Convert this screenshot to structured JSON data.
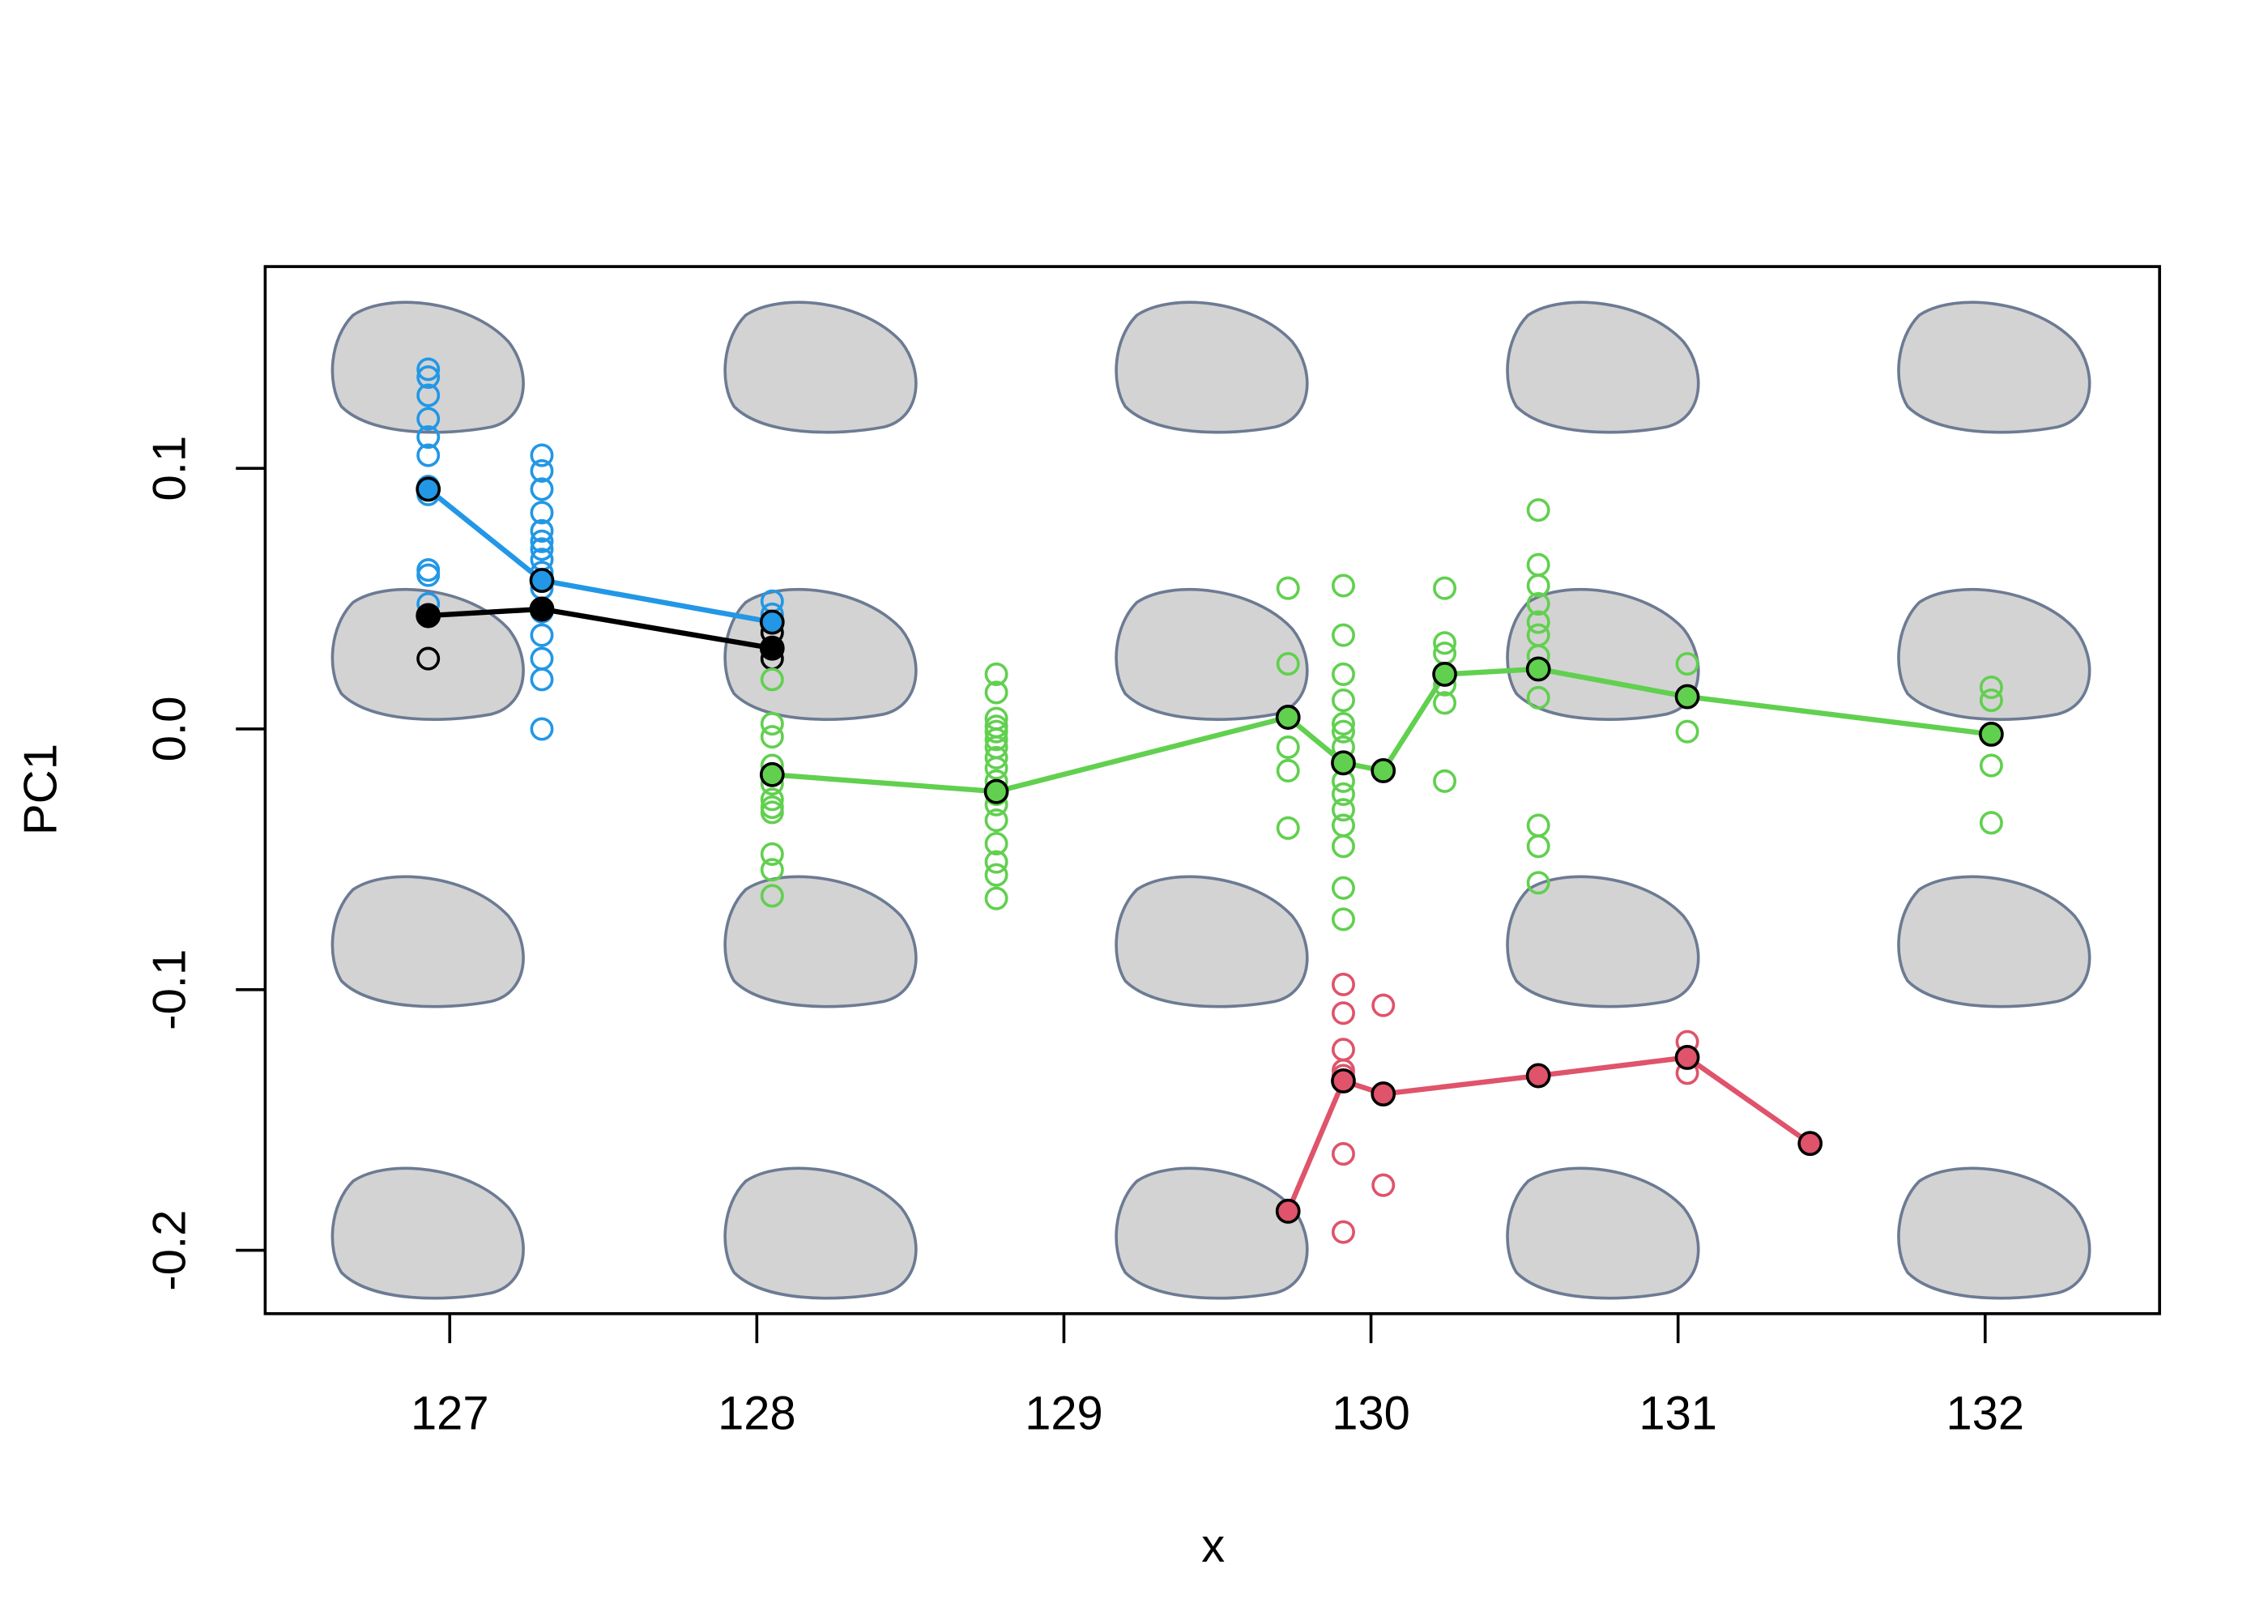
{
  "chart_data": {
    "type": "scatter",
    "x_label": "x",
    "y_label": "PC1",
    "xlim": [
      126.399,
      132.568
    ],
    "ylim": [
      -0.2243,
      0.1774
    ],
    "xticks": [
      127,
      128,
      129,
      130,
      131,
      132
    ],
    "yticks": [
      -0.2,
      -0.1,
      {
        "value": 0,
        "label": "0.0"
      },
      0.1
    ],
    "series": [
      {
        "kind": "points",
        "color": "#2297E6",
        "x": [
          126.93,
          126.93,
          126.93,
          126.93,
          126.93,
          126.93,
          126.93,
          126.93,
          126.93,
          126.93,
          126.93,
          127.3,
          127.3,
          127.3,
          127.3,
          127.3,
          127.3,
          127.3,
          127.3,
          127.3,
          127.3,
          127.3,
          127.3,
          127.3,
          127.3,
          127.3,
          128.05,
          128.05,
          128.05
        ],
        "values": [
          0.138,
          0.135,
          0.128,
          0.119,
          0.112,
          0.105,
          0.093,
          0.09,
          0.061,
          0.059,
          0.048,
          0.105,
          0.099,
          0.092,
          0.083,
          0.076,
          0.072,
          0.069,
          0.065,
          0.06,
          0.054,
          0.045,
          0.036,
          0.027,
          0.019,
          0.0,
          0.049,
          0.044,
          0.041
        ]
      },
      {
        "kind": "points",
        "color": "#000000",
        "x": [
          126.93,
          128.05,
          128.05
        ],
        "values": [
          0.027,
          0.037,
          0.027
        ]
      },
      {
        "kind": "points",
        "color": "#61D04F",
        "x": [
          128.05,
          128.05,
          128.05,
          128.05,
          128.05,
          128.05,
          128.05,
          128.05,
          128.05,
          128.05,
          128.05,
          128.78,
          128.78,
          128.78,
          128.78,
          128.78,
          128.78,
          128.78,
          128.78,
          128.78,
          128.78,
          128.78,
          128.78,
          128.78,
          128.78,
          128.78,
          128.78,
          128.78,
          129.73,
          129.73,
          129.73,
          129.73,
          129.73,
          129.91,
          129.91,
          129.91,
          129.91,
          129.91,
          129.91,
          129.91,
          129.91,
          129.91,
          129.91,
          129.91,
          129.91,
          129.91,
          129.91,
          129.91,
          130.24,
          130.24,
          130.24,
          130.24,
          130.24,
          130.24,
          130.545,
          130.545,
          130.545,
          130.545,
          130.545,
          130.545,
          130.545,
          130.545,
          130.545,
          130.545,
          130.545,
          131.03,
          131.03,
          132.02,
          132.02,
          132.02,
          132.02
        ],
        "values": [
          0.019,
          0.002,
          -0.003,
          -0.014,
          -0.021,
          -0.027,
          -0.03,
          -0.032,
          -0.048,
          -0.054,
          -0.064,
          0.021,
          0.014,
          0.004,
          0.001,
          -0.001,
          -0.004,
          -0.007,
          -0.011,
          -0.015,
          -0.02,
          -0.025,
          -0.029,
          -0.035,
          -0.044,
          -0.051,
          -0.056,
          -0.065,
          0.054,
          0.025,
          -0.007,
          -0.016,
          -0.038,
          0.055,
          0.036,
          0.021,
          0.011,
          0.002,
          -0.001,
          -0.007,
          -0.013,
          -0.02,
          -0.025,
          -0.031,
          -0.037,
          -0.045,
          -0.061,
          -0.073,
          0.054,
          0.033,
          0.029,
          0.017,
          0.01,
          -0.02,
          0.084,
          0.063,
          0.055,
          0.048,
          0.041,
          0.036,
          0.028,
          0.012,
          -0.037,
          -0.045,
          -0.059,
          0.025,
          -0.001,
          0.016,
          0.011,
          -0.014,
          -0.036
        ]
      },
      {
        "kind": "points",
        "color": "#DF536B",
        "x": [
          129.91,
          129.91,
          129.91,
          129.91,
          129.91,
          129.91,
          129.91,
          130.04,
          130.04,
          131.03,
          131.03
        ],
        "values": [
          -0.098,
          -0.109,
          -0.123,
          -0.131,
          -0.133,
          -0.163,
          -0.193,
          -0.106,
          -0.175,
          -0.12,
          -0.132
        ]
      },
      {
        "kind": "line",
        "color": "#2297E6",
        "x": [
          126.93,
          127.3,
          128.05
        ],
        "values": [
          0.092,
          0.057,
          0.041
        ]
      },
      {
        "kind": "line",
        "color": "#000000",
        "x": [
          126.93,
          127.3,
          128.05
        ],
        "values": [
          0.0435,
          0.046,
          0.031
        ]
      },
      {
        "kind": "line",
        "color": "#61D04F",
        "x": [
          128.05,
          128.78,
          129.73,
          129.91,
          130.04,
          130.24,
          130.545,
          131.03,
          132.02
        ],
        "values": [
          -0.0175,
          -0.024,
          0.0045,
          -0.013,
          -0.016,
          0.021,
          0.023,
          0.0124,
          -0.002
        ]
      },
      {
        "kind": "line",
        "color": "#DF536B",
        "x": [
          129.73,
          129.91,
          130.04,
          130.545,
          131.03,
          131.43
        ],
        "values": [
          -0.185,
          -0.135,
          -0.14,
          -0.133,
          -0.126,
          -0.159
        ]
      }
    ]
  }
}
